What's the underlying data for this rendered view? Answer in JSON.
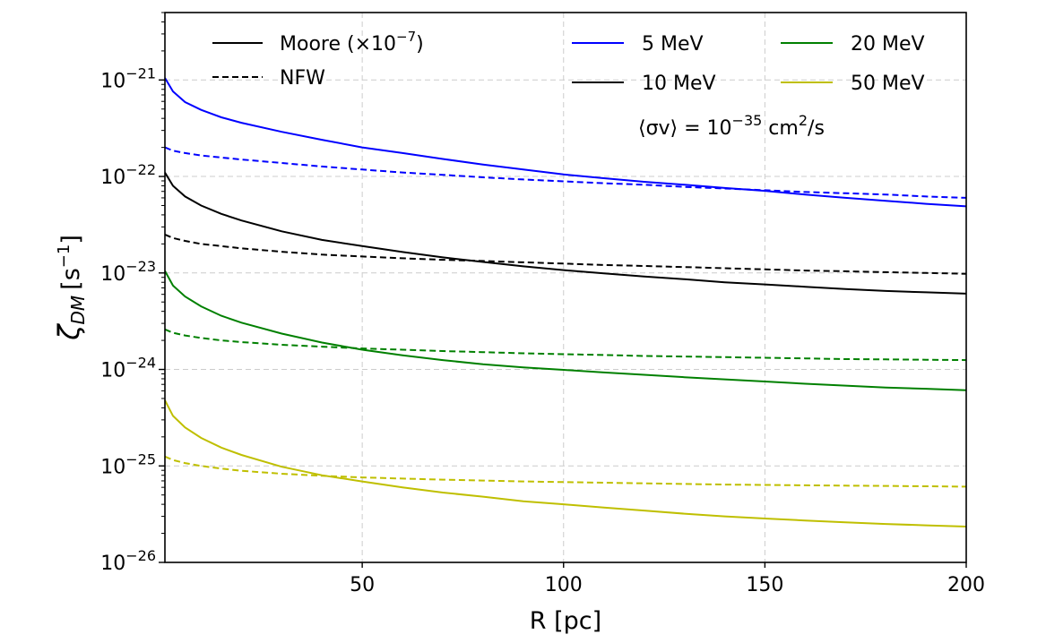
{
  "chart_data": {
    "type": "line",
    "xlabel": "R [pc]",
    "ylabel": "ζ_DM [s⁻¹]",
    "ylabel_main": "ζ",
    "ylabel_sub": "DM",
    "ylabel_unit": "[s",
    "ylabel_exp": "−1",
    "ylabel_close": "]",
    "xlim": [
      1,
      200
    ],
    "ylim": [
      1e-26,
      5e-21
    ],
    "yscale": "log",
    "grid": true,
    "x_ticks": [
      {
        "value": 50,
        "label": "50"
      },
      {
        "value": 100,
        "label": "100"
      },
      {
        "value": 150,
        "label": "150"
      },
      {
        "value": 200,
        "label": "200"
      }
    ],
    "y_ticks": [
      {
        "value": 1e-26,
        "base": "10",
        "exp": "−26"
      },
      {
        "value": 1e-25,
        "base": "10",
        "exp": "−25"
      },
      {
        "value": 1e-24,
        "base": "10",
        "exp": "−24"
      },
      {
        "value": 1e-23,
        "base": "10",
        "exp": "−23"
      },
      {
        "value": 1e-22,
        "base": "10",
        "exp": "−22"
      },
      {
        "value": 1e-21,
        "base": "10",
        "exp": "−21"
      }
    ],
    "legend_profiles": [
      {
        "label": "Moore (×10",
        "exp": "−7",
        "close": ")",
        "style": "solid"
      },
      {
        "label": "NFW",
        "exp": "",
        "close": "",
        "style": "dashed"
      }
    ],
    "legend_masses": [
      {
        "label": "5 MeV",
        "color": "#0000ff"
      },
      {
        "label": "10 MeV",
        "color": "#000000"
      },
      {
        "label": "20 MeV",
        "color": "#008000"
      },
      {
        "label": "50 MeV",
        "color": "#bfbf00"
      }
    ],
    "annotation": {
      "prefix": "⟨σv⟩ = 10",
      "exp": "−35",
      "suffix": " cm",
      "exp2": "2",
      "suffix2": "/s"
    },
    "legend_placement": "top",
    "series": [
      {
        "mass": "5 MeV",
        "profile": "Moore",
        "color": "#0000ff",
        "style": "solid",
        "x": [
          1,
          3,
          6,
          10,
          15,
          20,
          30,
          40,
          50,
          60,
          70,
          80,
          90,
          100,
          110,
          120,
          130,
          140,
          150,
          160,
          170,
          180,
          190,
          200
        ],
        "y": [
          1.05e-21,
          7.6e-22,
          5.9e-22,
          4.9e-22,
          4.1e-22,
          3.6e-22,
          2.9e-22,
          2.4e-22,
          2e-22,
          1.75e-22,
          1.52e-22,
          1.33e-22,
          1.18e-22,
          1.05e-22,
          9.6e-23,
          8.8e-23,
          8.2e-23,
          7.6e-23,
          7.1e-23,
          6.5e-23,
          6e-23,
          5.6e-23,
          5.2e-23,
          4.9e-23
        ]
      },
      {
        "mass": "5 MeV",
        "profile": "NFW",
        "color": "#0000ff",
        "style": "dashed",
        "x": [
          1,
          3,
          6,
          10,
          15,
          20,
          30,
          40,
          50,
          60,
          70,
          80,
          90,
          100,
          110,
          120,
          130,
          140,
          150,
          160,
          170,
          180,
          190,
          200
        ],
        "y": [
          2e-22,
          1.85e-22,
          1.75e-22,
          1.65e-22,
          1.57e-22,
          1.5e-22,
          1.38e-22,
          1.27e-22,
          1.18e-22,
          1.1e-22,
          1.04e-22,
          9.8e-23,
          9.3e-23,
          8.9e-23,
          8.5e-23,
          8.2e-23,
          7.8e-23,
          7.5e-23,
          7.2e-23,
          6.9e-23,
          6.7e-23,
          6.5e-23,
          6.2e-23,
          6e-23
        ]
      },
      {
        "mass": "10 MeV",
        "profile": "Moore",
        "color": "#000000",
        "style": "solid",
        "x": [
          1,
          3,
          6,
          10,
          15,
          20,
          30,
          40,
          50,
          60,
          70,
          80,
          90,
          100,
          110,
          120,
          130,
          140,
          150,
          160,
          170,
          180,
          190,
          200
        ],
        "y": [
          1.1e-22,
          8e-23,
          6.2e-23,
          5e-23,
          4.1e-23,
          3.5e-23,
          2.7e-23,
          2.2e-23,
          1.9e-23,
          1.65e-23,
          1.45e-23,
          1.3e-23,
          1.17e-23,
          1.07e-23,
          9.9e-24,
          9.2e-24,
          8.6e-24,
          8e-24,
          7.6e-24,
          7.2e-24,
          6.8e-24,
          6.5e-24,
          6.3e-24,
          6.1e-24
        ]
      },
      {
        "mass": "10 MeV",
        "profile": "NFW",
        "color": "#000000",
        "style": "dashed",
        "x": [
          1,
          3,
          6,
          10,
          15,
          20,
          30,
          40,
          50,
          60,
          70,
          80,
          90,
          100,
          110,
          120,
          130,
          140,
          150,
          160,
          170,
          180,
          190,
          200
        ],
        "y": [
          2.5e-23,
          2.3e-23,
          2.15e-23,
          2e-23,
          1.9e-23,
          1.8e-23,
          1.66e-23,
          1.55e-23,
          1.48e-23,
          1.42e-23,
          1.37e-23,
          1.33e-23,
          1.29e-23,
          1.25e-23,
          1.21e-23,
          1.18e-23,
          1.15e-23,
          1.12e-23,
          1.09e-23,
          1.06e-23,
          1.04e-23,
          1.02e-23,
          1e-23,
          9.8e-24
        ]
      },
      {
        "mass": "20 MeV",
        "profile": "Moore",
        "color": "#008000",
        "style": "solid",
        "x": [
          1,
          3,
          6,
          10,
          15,
          20,
          30,
          40,
          50,
          60,
          70,
          80,
          90,
          100,
          110,
          120,
          130,
          140,
          150,
          160,
          170,
          180,
          190,
          200
        ],
        "y": [
          1.05e-23,
          7.4e-24,
          5.7e-24,
          4.5e-24,
          3.6e-24,
          3.05e-24,
          2.35e-24,
          1.9e-24,
          1.6e-24,
          1.4e-24,
          1.25e-24,
          1.13e-24,
          1.05e-24,
          9.9e-25,
          9.3e-25,
          8.8e-25,
          8.3e-25,
          7.9e-25,
          7.5e-25,
          7.1e-25,
          6.8e-25,
          6.5e-25,
          6.3e-25,
          6.1e-25
        ]
      },
      {
        "mass": "20 MeV",
        "profile": "NFW",
        "color": "#008000",
        "style": "dashed",
        "x": [
          1,
          3,
          6,
          10,
          15,
          20,
          30,
          40,
          50,
          60,
          70,
          80,
          90,
          100,
          110,
          120,
          130,
          140,
          150,
          160,
          170,
          180,
          190,
          200
        ],
        "y": [
          2.6e-24,
          2.4e-24,
          2.25e-24,
          2.12e-24,
          2e-24,
          1.92e-24,
          1.8e-24,
          1.72e-24,
          1.65e-24,
          1.6e-24,
          1.55e-24,
          1.51e-24,
          1.47e-24,
          1.44e-24,
          1.41e-24,
          1.38e-24,
          1.36e-24,
          1.34e-24,
          1.32e-24,
          1.3e-24,
          1.28e-24,
          1.27e-24,
          1.26e-24,
          1.25e-24
        ]
      },
      {
        "mass": "50 MeV",
        "profile": "Moore",
        "color": "#bfbf00",
        "style": "solid",
        "x": [
          1,
          3,
          6,
          10,
          15,
          20,
          30,
          40,
          50,
          60,
          70,
          80,
          90,
          100,
          110,
          120,
          130,
          140,
          150,
          160,
          170,
          180,
          190,
          200
        ],
        "y": [
          4.8e-25,
          3.3e-25,
          2.5e-25,
          1.95e-25,
          1.55e-25,
          1.3e-25,
          9.8e-26,
          8e-26,
          6.9e-26,
          6e-26,
          5.3e-26,
          4.8e-26,
          4.3e-26,
          4e-26,
          3.7e-26,
          3.45e-26,
          3.2e-26,
          3e-26,
          2.85e-26,
          2.72e-26,
          2.6e-26,
          2.5e-26,
          2.42e-26,
          2.35e-26
        ]
      },
      {
        "mass": "50 MeV",
        "profile": "NFW",
        "color": "#bfbf00",
        "style": "dashed",
        "x": [
          1,
          3,
          6,
          10,
          15,
          20,
          30,
          40,
          50,
          60,
          70,
          80,
          90,
          100,
          110,
          120,
          130,
          140,
          150,
          160,
          170,
          180,
          190,
          200
        ],
        "y": [
          1.25e-25,
          1.15e-25,
          1.07e-25,
          1e-25,
          9.4e-26,
          8.9e-26,
          8.3e-26,
          7.9e-26,
          7.6e-26,
          7.4e-26,
          7.2e-26,
          7.05e-26,
          6.9e-26,
          6.8e-26,
          6.7e-26,
          6.6e-26,
          6.5e-26,
          6.4e-26,
          6.35e-26,
          6.3e-26,
          6.25e-26,
          6.2e-26,
          6.15e-26,
          6.1e-26
        ]
      }
    ]
  }
}
